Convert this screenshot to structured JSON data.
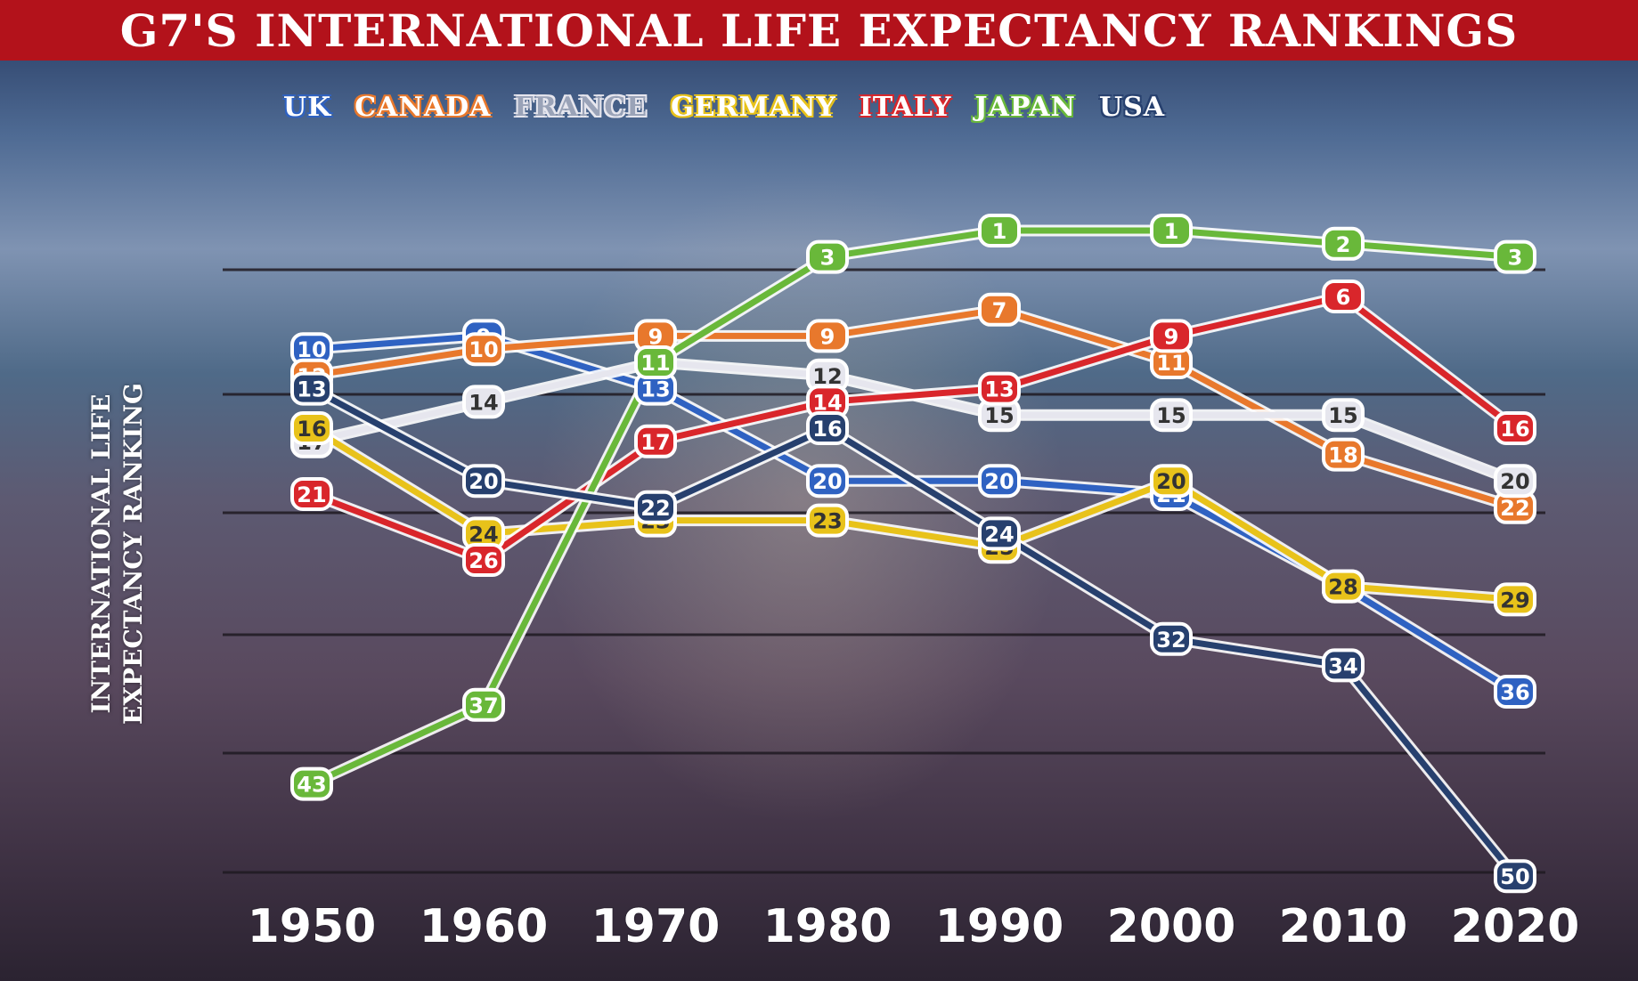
{
  "title": "G7'S INTERNATIONAL LIFE EXPECTANCY RANKINGS",
  "chart_data": {
    "type": "line",
    "title": "G7'S INTERNATIONAL LIFE EXPECTANCY RANKINGS",
    "ylabel": "INTERNATIONAL LIFE EXPECTANCY RANKING",
    "xlabel": "",
    "x": [
      "1950",
      "1960",
      "1970",
      "1980",
      "1990",
      "2000",
      "2010",
      "2020"
    ],
    "y_inverted": true,
    "grid": true,
    "legend_position": "top",
    "series": [
      {
        "name": "UK",
        "color": "#2f62c2",
        "values": [
          10,
          9,
          13,
          20,
          20,
          21,
          28,
          36
        ]
      },
      {
        "name": "CANADA",
        "color": "#e8782c",
        "values": [
          12,
          10,
          9,
          9,
          7,
          11,
          18,
          22
        ]
      },
      {
        "name": "FRANCE",
        "color": "#e6e6ee",
        "values": [
          17,
          14,
          11,
          12,
          15,
          15,
          15,
          20
        ]
      },
      {
        "name": "GERMANY",
        "color": "#e8c21a",
        "values": [
          16,
          24,
          23,
          23,
          25,
          20,
          28,
          29
        ]
      },
      {
        "name": "ITALY",
        "color": "#d9262b",
        "values": [
          21,
          26,
          17,
          14,
          13,
          9,
          6,
          16
        ]
      },
      {
        "name": "JAPAN",
        "color": "#69b83a",
        "values": [
          43,
          37,
          11,
          3,
          1,
          1,
          2,
          3
        ]
      },
      {
        "name": "USA",
        "color": "#27406e",
        "values": [
          13,
          20,
          22,
          16,
          24,
          32,
          34,
          50
        ]
      }
    ]
  }
}
